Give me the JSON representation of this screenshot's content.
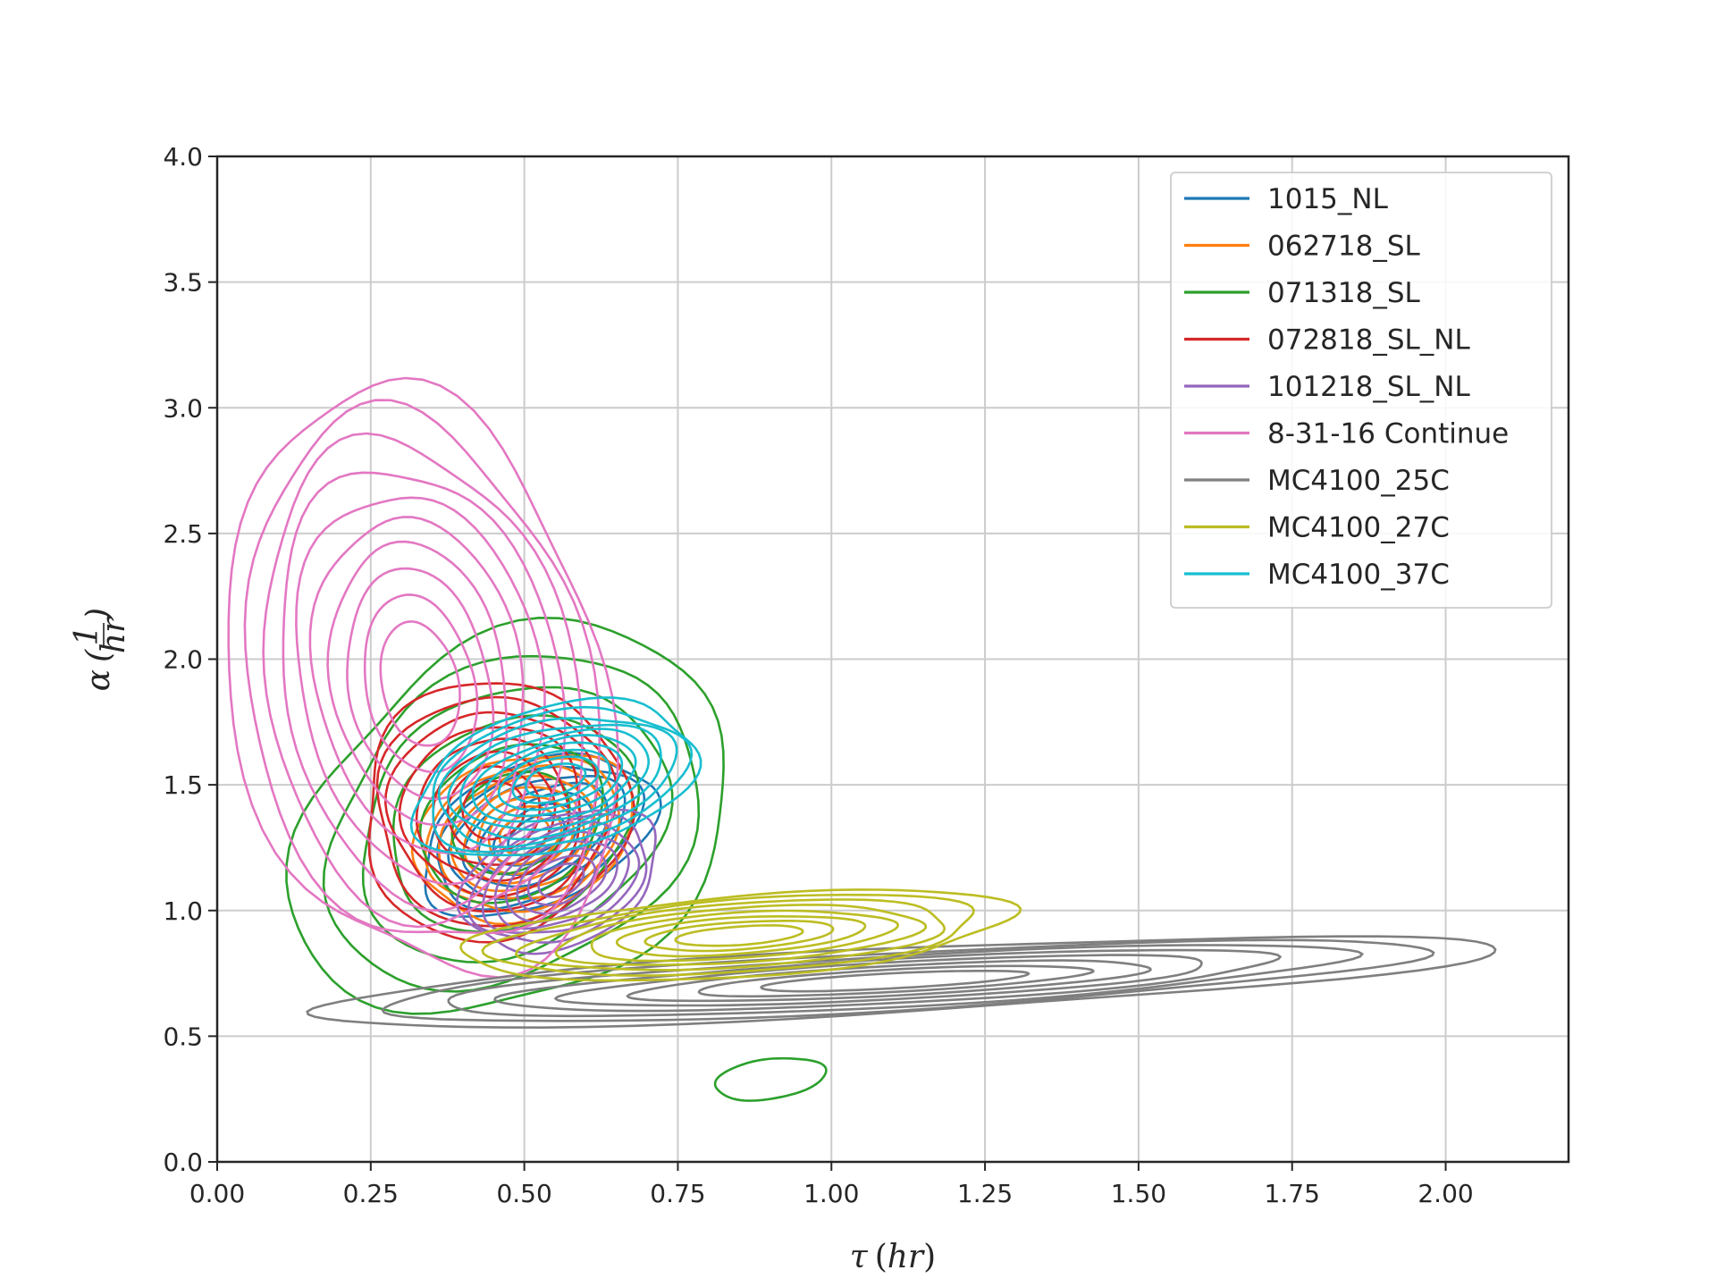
{
  "chart_data": {
    "type": "kde-contour",
    "title": "",
    "xlabel": "τ (hr)",
    "ylabel": "α (1/hr)",
    "ylabel_parts": {
      "symbol": "α",
      "numerator": "1",
      "denominator": "hr"
    },
    "xlabel_parts": {
      "symbol": "τ",
      "unit": "hr"
    },
    "xlim": [
      0.0,
      2.2
    ],
    "ylim": [
      0.0,
      4.0
    ],
    "xticks": [
      "0.00",
      "0.25",
      "0.50",
      "0.75",
      "1.00",
      "1.25",
      "1.50",
      "1.75",
      "2.00"
    ],
    "xtick_values": [
      0.0,
      0.25,
      0.5,
      0.75,
      1.0,
      1.25,
      1.5,
      1.75,
      2.0
    ],
    "yticks": [
      "0.0",
      "0.5",
      "1.0",
      "1.5",
      "2.0",
      "2.5",
      "3.0",
      "3.5",
      "4.0"
    ],
    "ytick_values": [
      0.0,
      0.5,
      1.0,
      1.5,
      2.0,
      2.5,
      3.0,
      3.5,
      4.0
    ],
    "grid": true,
    "legend_position": "top-right",
    "series": [
      {
        "name": "1015_NL",
        "color": "#1f77b4",
        "center": [
          0.52,
          1.3
        ],
        "spread": [
          0.2,
          0.28
        ],
        "tilt": -25,
        "levels": 7
      },
      {
        "name": "062718_SL",
        "color": "#ff7f0e",
        "center": [
          0.5,
          1.3
        ],
        "spread": [
          0.18,
          0.32
        ],
        "tilt": -20,
        "levels": 8
      },
      {
        "name": "071318_SL",
        "color": "#2ca02c",
        "center": [
          0.48,
          1.35
        ],
        "spread": [
          0.38,
          0.7
        ],
        "tilt": -30,
        "levels": 6,
        "extra_blob": {
          "center": [
            0.9,
            0.33
          ],
          "spread": [
            0.09,
            0.08
          ]
        }
      },
      {
        "name": "072818_SL_NL",
        "color": "#d62728",
        "center": [
          0.45,
          1.4
        ],
        "spread": [
          0.22,
          0.5
        ],
        "tilt": -20,
        "levels": 8
      },
      {
        "name": "101218_SL_NL",
        "color": "#9467bd",
        "center": [
          0.56,
          1.12
        ],
        "spread": [
          0.17,
          0.25
        ],
        "tilt": -25,
        "levels": 8
      },
      {
        "name": "8-31-16 Continue",
        "color": "#e377c2",
        "center": [
          0.33,
          1.9
        ],
        "spread": [
          0.3,
          1.2
        ],
        "tilt": -12,
        "levels": 10
      },
      {
        "name": "MC4100_25C",
        "color": "#7f7f7f",
        "center": [
          1.1,
          0.72
        ],
        "spread": [
          0.95,
          0.13
        ],
        "tilt": -3,
        "levels": 8
      },
      {
        "name": "MC4100_27C",
        "color": "#bcbd22",
        "center": [
          0.85,
          0.9
        ],
        "spread": [
          0.45,
          0.16
        ],
        "tilt": -4,
        "levels": 8
      },
      {
        "name": "MC4100_37C",
        "color": "#17becf",
        "center": [
          0.55,
          1.52
        ],
        "spread": [
          0.24,
          0.28
        ],
        "tilt": -15,
        "levels": 10
      }
    ]
  }
}
